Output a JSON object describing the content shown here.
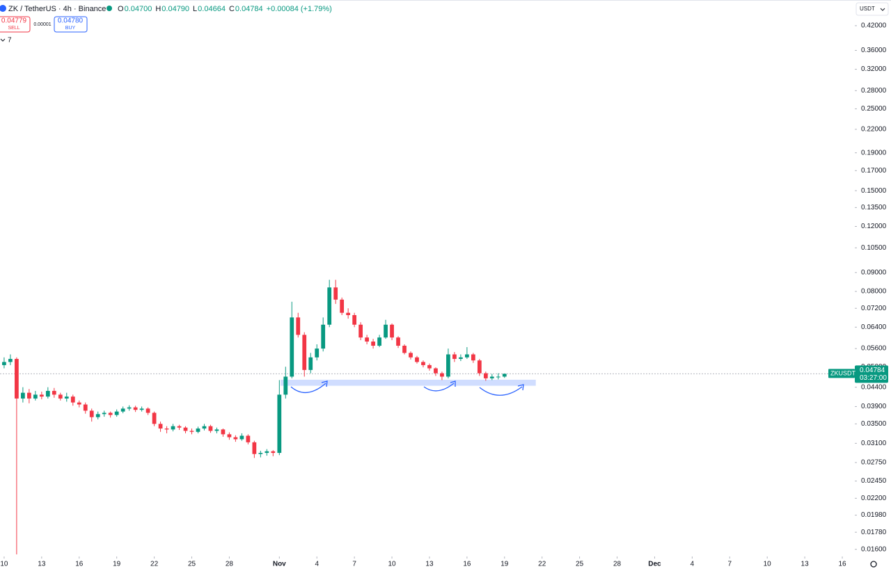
{
  "toolbar": {
    "sell_price": "0.04779",
    "sell": "SELL",
    "spread": "0.00001",
    "buy_price": "0.04780",
    "buy": "BUY",
    "indicators_count": "7",
    "currency": "USDT"
  },
  "chart_data": {
    "type": "candlestick",
    "title": "ZK / TetherUS · 4h · Binance",
    "ohlc_header": [
      {
        "key": "O",
        "text": "0.04700"
      },
      {
        "key": "H",
        "text": "0.04790"
      },
      {
        "key": "L",
        "text": "0.04664"
      },
      {
        "key": "C",
        "text": "0.04784"
      }
    ],
    "change": "+0.00084 (+1.79%)",
    "x": [
      0,
      0.5,
      1,
      1.5,
      2,
      2.5,
      3,
      3.5,
      4,
      4.5,
      5,
      5.5,
      6,
      6.5,
      7,
      7.5,
      8,
      8.5,
      9,
      9.5,
      10,
      10.5,
      11,
      11.5,
      12,
      12.5,
      13,
      13.5,
      14,
      14.5,
      15,
      15.5,
      16,
      16.5,
      17,
      17.5,
      18,
      18.5,
      19,
      19.5,
      20,
      20.5,
      21,
      21.5,
      22,
      22.5,
      23,
      23.5,
      24,
      24.5,
      25,
      25.5,
      26,
      26.5,
      27,
      27.5,
      28,
      28.5,
      29,
      29.5,
      30,
      30.5,
      31,
      31.5,
      32,
      32.5,
      33,
      33.5,
      34,
      34.5,
      35,
      35.5,
      36,
      36.5,
      37,
      37.5,
      38,
      38.5,
      39,
      39.5,
      40
    ],
    "open": [
      0.0505,
      0.0515,
      0.0525,
      0.041,
      0.0425,
      0.041,
      0.042,
      0.0415,
      0.043,
      0.042,
      0.041,
      0.0415,
      0.04,
      0.0395,
      0.038,
      0.0365,
      0.0372,
      0.0375,
      0.037,
      0.0378,
      0.0385,
      0.0388,
      0.0382,
      0.0385,
      0.0375,
      0.035,
      0.034,
      0.0338,
      0.0345,
      0.0342,
      0.0335,
      0.0333,
      0.034,
      0.0345,
      0.0335,
      0.0338,
      0.0328,
      0.0322,
      0.0318,
      0.0325,
      0.0312,
      0.029,
      0.0292,
      0.0295,
      0.0292,
      0.042,
      0.047,
      0.068,
      0.061,
      0.049,
      0.053,
      0.056,
      0.065,
      0.082,
      0.076,
      0.07,
      0.069,
      0.065,
      0.06,
      0.0585,
      0.057,
      0.06,
      0.065,
      0.06,
      0.057,
      0.0545,
      0.053,
      0.0515,
      0.0505,
      0.0495,
      0.048,
      0.047,
      0.054,
      0.0525,
      0.053,
      0.054,
      0.052,
      0.048,
      0.0465,
      0.047,
      0.047
    ],
    "high": [
      0.053,
      0.054,
      0.053,
      0.044,
      0.0435,
      0.043,
      0.0428,
      0.044,
      0.0438,
      0.0425,
      0.0425,
      0.042,
      0.0405,
      0.04,
      0.0385,
      0.0378,
      0.038,
      0.0378,
      0.0383,
      0.039,
      0.0393,
      0.0392,
      0.039,
      0.0388,
      0.0378,
      0.0355,
      0.0345,
      0.035,
      0.0348,
      0.0345,
      0.034,
      0.0344,
      0.035,
      0.0348,
      0.0342,
      0.034,
      0.0332,
      0.0326,
      0.033,
      0.0328,
      0.0315,
      0.0296,
      0.0299,
      0.0297,
      0.046,
      0.05,
      0.075,
      0.07,
      0.062,
      0.0545,
      0.0575,
      0.068,
      0.086,
      0.086,
      0.077,
      0.072,
      0.07,
      0.066,
      0.061,
      0.0595,
      0.061,
      0.067,
      0.0655,
      0.0605,
      0.0575,
      0.055,
      0.0535,
      0.052,
      0.051,
      0.0498,
      0.0485,
      0.056,
      0.0548,
      0.054,
      0.0565,
      0.0545,
      0.0525,
      0.0485,
      0.0478,
      0.048,
      0.0479
    ],
    "low": [
      0.0495,
      0.0505,
      0.0155,
      0.04,
      0.0398,
      0.0405,
      0.0408,
      0.041,
      0.0412,
      0.0405,
      0.0402,
      0.0392,
      0.0388,
      0.0373,
      0.0355,
      0.036,
      0.0366,
      0.0364,
      0.0366,
      0.0374,
      0.038,
      0.0377,
      0.0378,
      0.037,
      0.0345,
      0.0333,
      0.033,
      0.0334,
      0.0337,
      0.033,
      0.0328,
      0.033,
      0.0336,
      0.0331,
      0.033,
      0.0323,
      0.0317,
      0.0313,
      0.0315,
      0.0308,
      0.0283,
      0.0284,
      0.0287,
      0.0286,
      0.0288,
      0.041,
      0.0465,
      0.06,
      0.047,
      0.048,
      0.052,
      0.055,
      0.064,
      0.074,
      0.069,
      0.0675,
      0.064,
      0.059,
      0.0575,
      0.056,
      0.0565,
      0.0595,
      0.059,
      0.0562,
      0.054,
      0.0523,
      0.051,
      0.0498,
      0.0488,
      0.0472,
      0.046,
      0.0465,
      0.0515,
      0.0518,
      0.0525,
      0.0512,
      0.0472,
      0.0458,
      0.046,
      0.0462,
      0.04664
    ],
    "close": [
      0.0515,
      0.0525,
      0.041,
      0.0425,
      0.041,
      0.042,
      0.0415,
      0.043,
      0.042,
      0.041,
      0.0415,
      0.04,
      0.0395,
      0.038,
      0.0365,
      0.0372,
      0.0375,
      0.037,
      0.0378,
      0.0385,
      0.0388,
      0.0382,
      0.0385,
      0.0375,
      0.035,
      0.034,
      0.0338,
      0.0345,
      0.0342,
      0.0335,
      0.0333,
      0.034,
      0.0345,
      0.0335,
      0.0338,
      0.0328,
      0.0322,
      0.0318,
      0.0325,
      0.0312,
      0.029,
      0.0292,
      0.0295,
      0.0292,
      0.042,
      0.047,
      0.068,
      0.061,
      0.049,
      0.053,
      0.056,
      0.065,
      0.082,
      0.076,
      0.07,
      0.069,
      0.065,
      0.06,
      0.0585,
      0.057,
      0.06,
      0.065,
      0.06,
      0.057,
      0.0545,
      0.053,
      0.0515,
      0.0505,
      0.0495,
      0.048,
      0.047,
      0.054,
      0.0525,
      0.053,
      0.054,
      0.052,
      0.048,
      0.0465,
      0.047,
      0.047,
      0.04784
    ],
    "up_color": "#089981",
    "down_color": "#f23645",
    "log_scale": true,
    "grid": false,
    "xlim": [
      -0.33,
      68.0
    ],
    "xticks": [
      {
        "value": 0,
        "label": "10"
      },
      {
        "value": 3,
        "label": "13"
      },
      {
        "value": 6,
        "label": "16"
      },
      {
        "value": 9,
        "label": "19"
      },
      {
        "value": 12,
        "label": "22"
      },
      {
        "value": 15,
        "label": "25"
      },
      {
        "value": 18,
        "label": "28"
      },
      {
        "value": 22,
        "label": "Nov"
      },
      {
        "value": 25,
        "label": "4"
      },
      {
        "value": 28,
        "label": "7"
      },
      {
        "value": 31,
        "label": "10"
      },
      {
        "value": 34,
        "label": "13"
      },
      {
        "value": 37,
        "label": "16"
      },
      {
        "value": 40,
        "label": "19"
      },
      {
        "value": 43,
        "label": "22"
      },
      {
        "value": 46,
        "label": "25"
      },
      {
        "value": 49,
        "label": "28"
      },
      {
        "value": 52,
        "label": "Dec"
      },
      {
        "value": 55,
        "label": "4"
      },
      {
        "value": 58,
        "label": "7"
      },
      {
        "value": 61,
        "label": "10"
      },
      {
        "value": 64,
        "label": "13"
      },
      {
        "value": 67,
        "label": "16"
      }
    ],
    "ylim": [
      0.0153,
      0.493
    ],
    "yticks": [
      {
        "value": 0.42,
        "label": "0.42000"
      },
      {
        "value": 0.36,
        "label": "0.36000"
      },
      {
        "value": 0.32,
        "label": "0.32000"
      },
      {
        "value": 0.28,
        "label": "0.28000"
      },
      {
        "value": 0.25,
        "label": "0.25000"
      },
      {
        "value": 0.22,
        "label": "0.22000"
      },
      {
        "value": 0.19,
        "label": "0.19000"
      },
      {
        "value": 0.17,
        "label": "0.17000"
      },
      {
        "value": 0.15,
        "label": "0.15000"
      },
      {
        "value": 0.135,
        "label": "0.13500"
      },
      {
        "value": 0.12,
        "label": "0.12000"
      },
      {
        "value": 0.105,
        "label": "0.10500"
      },
      {
        "value": 0.09,
        "label": "0.09000"
      },
      {
        "value": 0.08,
        "label": "0.08000"
      },
      {
        "value": 0.072,
        "label": "0.07200"
      },
      {
        "value": 0.064,
        "label": "0.06400"
      },
      {
        "value": 0.056,
        "label": "0.05600"
      },
      {
        "value": 0.05,
        "label": "0.05000"
      },
      {
        "value": 0.044,
        "label": "0.04400"
      },
      {
        "value": 0.039,
        "label": "0.03900"
      },
      {
        "value": 0.035,
        "label": "0.03500"
      },
      {
        "value": 0.031,
        "label": "0.03100"
      },
      {
        "value": 0.0275,
        "label": "0.02750"
      },
      {
        "value": 0.0245,
        "label": "0.02450"
      },
      {
        "value": 0.022,
        "label": "0.02200"
      },
      {
        "value": 0.0198,
        "label": "0.01980"
      },
      {
        "value": 0.0178,
        "label": "0.01780"
      },
      {
        "value": 0.016,
        "label": "0.01600"
      }
    ],
    "price_label": {
      "symbol": "ZKUSDT",
      "value": 0.04784,
      "label": "0.04784",
      "countdown": "03:27:00"
    },
    "zone": {
      "x": [
        22.1,
        42.5
      ],
      "y": [
        0.0444,
        0.0461
      ],
      "color": "rgba(41,98,255,0.22)"
    }
  }
}
